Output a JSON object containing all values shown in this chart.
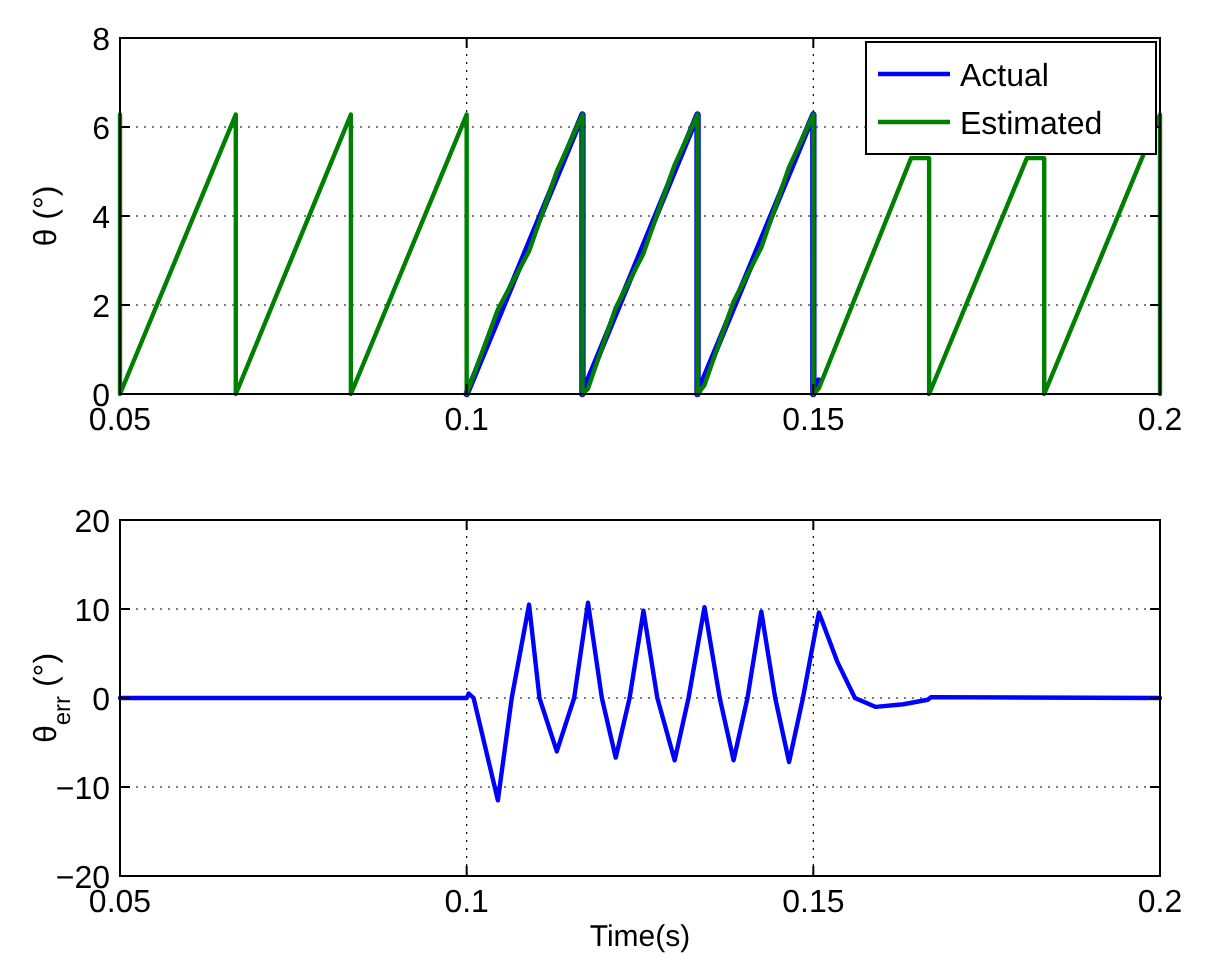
{
  "chart_data": [
    {
      "type": "line",
      "ylabel": "θ (°)",
      "xlim": [
        0.05,
        0.2
      ],
      "ylim": [
        0,
        8
      ],
      "xticks": [
        0.05,
        0.1,
        0.15,
        0.2
      ],
      "yticks": [
        0,
        2,
        4,
        6,
        8
      ],
      "grid": true,
      "legend": "top right",
      "line_style": "solid",
      "series": [
        {
          "name": "Actual",
          "color": "#0000ff",
          "x": [
            0.1,
            0.1167,
            0.1167,
            0.1333,
            0.1333,
            0.15,
            0.15,
            0.1508
          ],
          "values": [
            0,
            6.28,
            0,
            6.28,
            0,
            6.28,
            0,
            0.3
          ]
        },
        {
          "name": "Estimated",
          "color": "#008000",
          "x": [
            0.05,
            0.05,
            0.0667,
            0.0667,
            0.0833,
            0.0833,
            0.1,
            0.1,
            0.1045,
            0.109,
            0.113,
            0.1167,
            0.1167,
            0.1175,
            0.1215,
            0.1255,
            0.13,
            0.1333,
            0.1333,
            0.1343,
            0.1385,
            0.1425,
            0.1465,
            0.15,
            0.15,
            0.1508,
            0.1641,
            0.1667,
            0.1667,
            0.1808,
            0.1833,
            0.1833,
            0.2,
            0.2
          ],
          "values": [
            6.28,
            0,
            6.28,
            0,
            6.28,
            0,
            6.28,
            0,
            1.9,
            3.21,
            5.0,
            6.28,
            0,
            0.12,
            1.94,
            3.16,
            5.15,
            6.28,
            0,
            0.2,
            2.08,
            3.29,
            5.1,
            6.28,
            0,
            0.13,
            5.3,
            5.3,
            0,
            5.3,
            5.3,
            0,
            6.28,
            0
          ]
        }
      ]
    },
    {
      "type": "line",
      "xlabel": "Time(s)",
      "ylabel": "θ$_{err}$ (°)",
      "xlim": [
        0.05,
        0.2
      ],
      "ylim": [
        -20,
        20
      ],
      "xticks": [
        0.05,
        0.1,
        0.15,
        0.2
      ],
      "yticks": [
        -20,
        -10,
        0,
        10,
        20
      ],
      "grid": true,
      "line_style": "solid",
      "series": [
        {
          "color": "#0000ff",
          "x": [
            0.05,
            0.1,
            0.1003,
            0.101,
            0.1045,
            0.1065,
            0.109,
            0.1105,
            0.113,
            0.1155,
            0.1175,
            0.1195,
            0.1215,
            0.1235,
            0.1255,
            0.1275,
            0.13,
            0.132,
            0.1343,
            0.1365,
            0.1385,
            0.1405,
            0.1425,
            0.1445,
            0.1465,
            0.1485,
            0.1508,
            0.1535,
            0.156,
            0.159,
            0.163,
            0.1665,
            0.167,
            0.2
          ],
          "values": [
            0,
            0,
            0.5,
            0,
            -11.5,
            0,
            10.5,
            0,
            -6,
            0,
            10.7,
            0,
            -6.7,
            0,
            9.8,
            0,
            -7,
            0,
            10.2,
            0,
            -7,
            0,
            9.7,
            0,
            -7.2,
            0,
            9.6,
            4,
            0,
            -1,
            -0.7,
            -0.2,
            0.1,
            0
          ]
        }
      ]
    }
  ]
}
